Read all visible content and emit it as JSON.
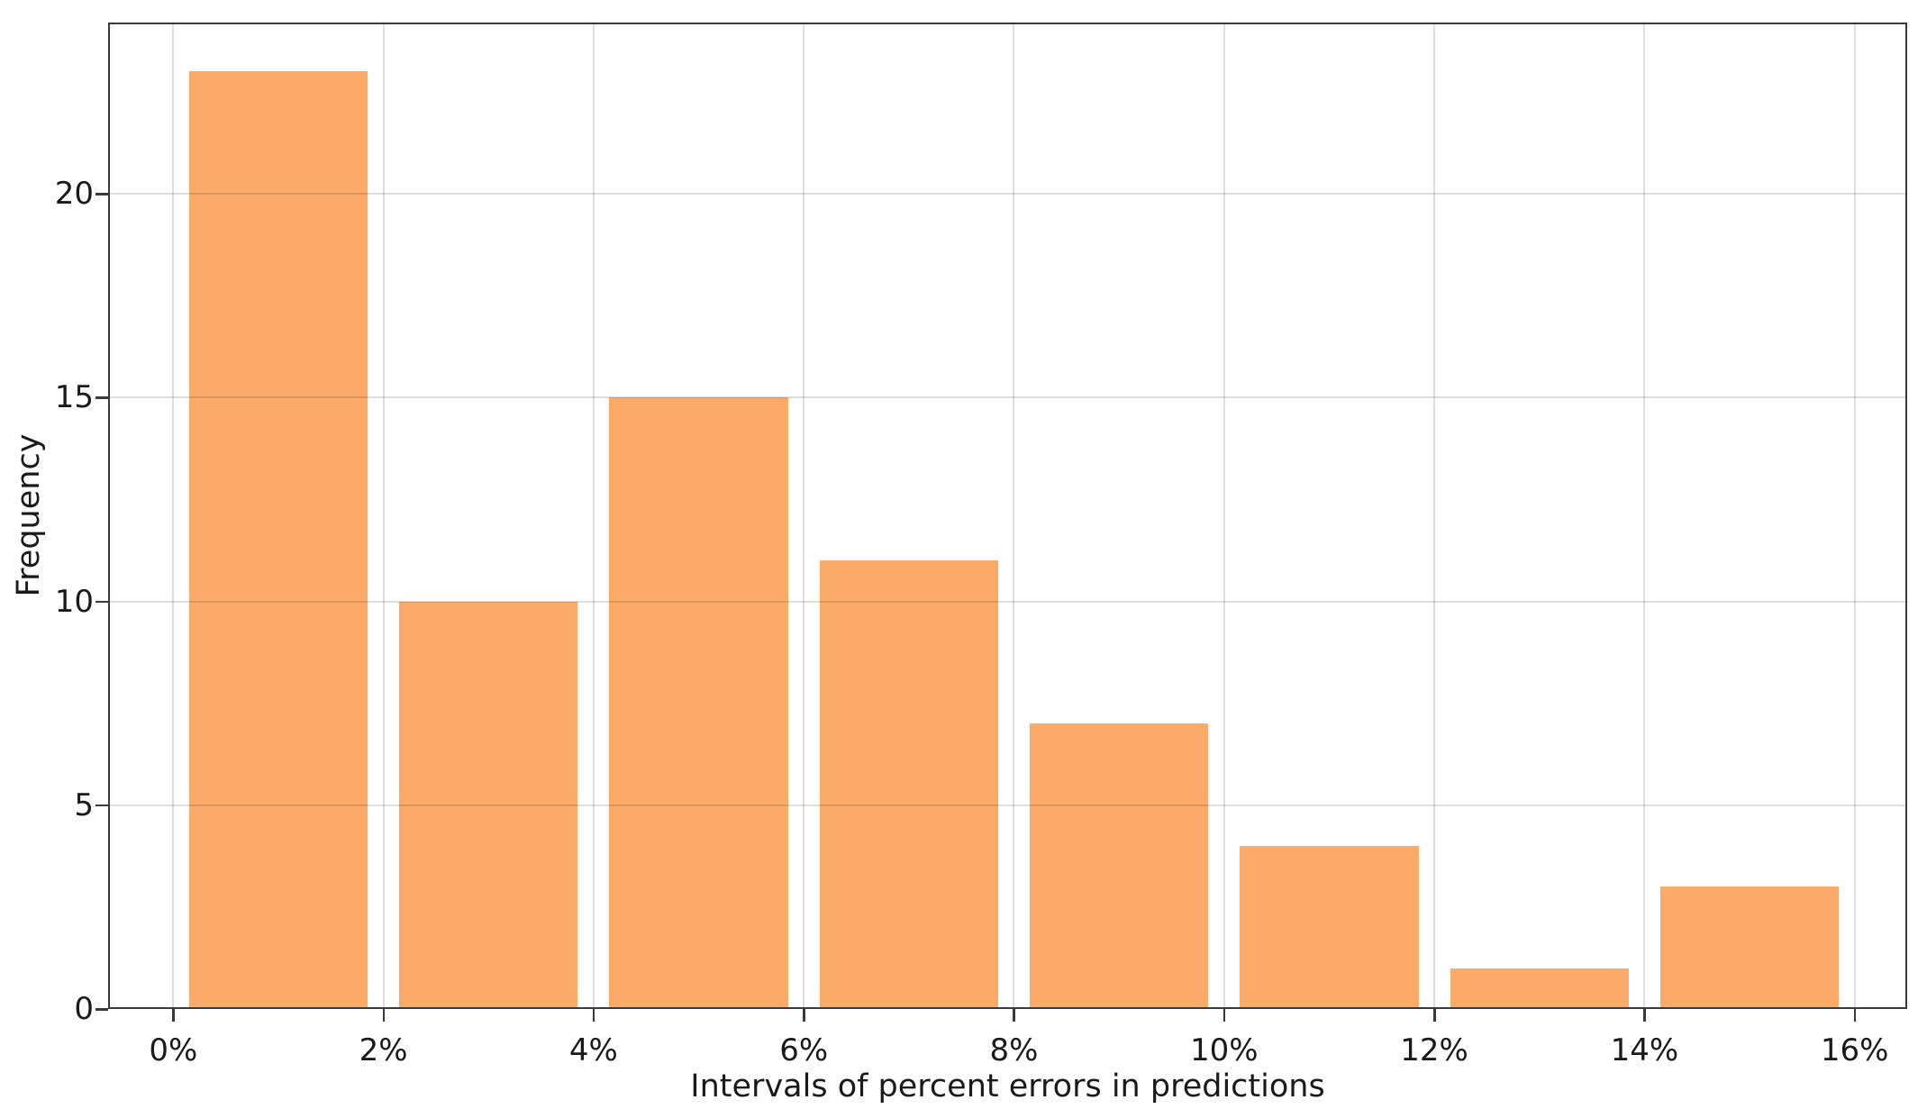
{
  "chart_data": {
    "type": "bar",
    "title": "",
    "xlabel": "Intervals of percent errors in predictions",
    "ylabel": "Frequency",
    "categories": [
      "0-2%",
      "2-4%",
      "4-6%",
      "6-8%",
      "8-10%",
      "10-12%",
      "12-14%",
      "14-16%"
    ],
    "bin_centers": [
      1,
      3,
      5,
      7,
      9,
      11,
      13,
      15
    ],
    "values": [
      23,
      10,
      15,
      11,
      7,
      4,
      1,
      3
    ],
    "bar_half_width": 0.85,
    "x_tick_labels": [
      "0%",
      "2%",
      "4%",
      "6%",
      "8%",
      "10%",
      "12%",
      "14%",
      "16%"
    ],
    "x_tick_values": [
      0,
      2,
      4,
      6,
      8,
      10,
      12,
      14,
      16
    ],
    "y_tick_labels": [
      "0",
      "5",
      "10",
      "15",
      "20"
    ],
    "y_tick_values": [
      0,
      5,
      10,
      15,
      20
    ],
    "xlim": [
      -0.62,
      16.5
    ],
    "ylim": [
      0,
      24.2
    ],
    "grid": true,
    "grid_over_bars": true,
    "legend": false,
    "colors": {
      "bar_fill": "#FCAA67",
      "grid_line": "rgba(0,0,0,0.13)",
      "spine": "#3a3a3a",
      "text": "#1a1a1a",
      "background": "#ffffff"
    }
  }
}
